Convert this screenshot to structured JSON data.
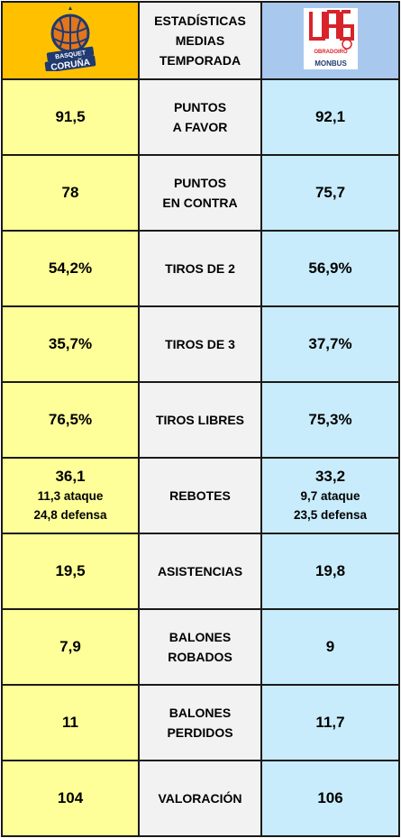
{
  "header": {
    "left_logo_text_line1": "BASQUET",
    "left_logo_text_line2": "CORUÑA",
    "title_line1": "ESTADÍSTICAS",
    "title_line2": "MEDIAS",
    "title_line3": "TEMPORADA",
    "right_logo_text_line1": "OBRADOIRO",
    "right_logo_text_line2": "MONBUS",
    "colors": {
      "left": "#ffc000",
      "middle": "#f2f2f2",
      "right": "#a9c8ee"
    }
  },
  "rows": [
    {
      "label_line1": "PUNTOS",
      "label_line2": "A FAVOR",
      "left": "91,5",
      "right": "92,1"
    },
    {
      "label_line1": "PUNTOS",
      "label_line2": "EN CONTRA",
      "left": "78",
      "right": "75,7"
    },
    {
      "label_line1": "TIROS DE 2",
      "label_line2": "",
      "left": "54,2%",
      "right": "56,9%"
    },
    {
      "label_line1": "TIROS DE 3",
      "label_line2": "",
      "left": "35,7%",
      "right": "37,7%"
    },
    {
      "label_line1": "TIROS LIBRES",
      "label_line2": "",
      "left": "76,5%",
      "right": "75,3%"
    },
    {
      "label_line1": "REBOTES",
      "label_line2": "",
      "left": "36,1",
      "left_sub1": "11,3 ataque",
      "left_sub2": "24,8 defensa",
      "right": "33,2",
      "right_sub1": "9,7 ataque",
      "right_sub2": "23,5 defensa"
    },
    {
      "label_line1": "ASISTENCIAS",
      "label_line2": "",
      "left": "19,5",
      "right": "19,8"
    },
    {
      "label_line1": "BALONES",
      "label_line2": "ROBADOS",
      "left": "7,9",
      "right": "9"
    },
    {
      "label_line1": "BALONES",
      "label_line2": "PERDIDOS",
      "left": "11",
      "right": "11,7"
    },
    {
      "label_line1": "VALORACIÓN",
      "label_line2": "",
      "left": "104",
      "right": "106"
    }
  ],
  "colors": {
    "left_cells": "#ffff99",
    "middle_cells": "#f2f2f2",
    "right_cells": "#c8ecfb"
  }
}
